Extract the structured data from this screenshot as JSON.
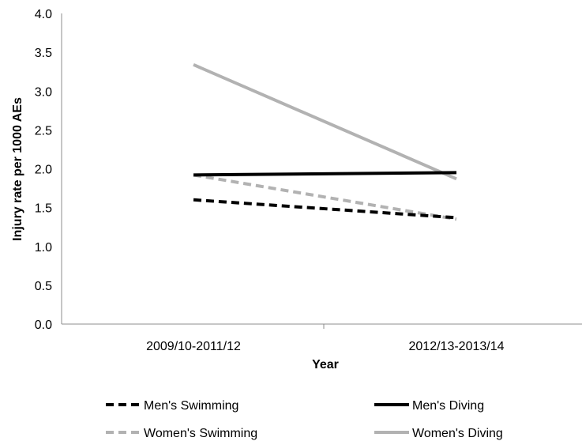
{
  "chart_data": {
    "type": "line",
    "title": "",
    "xlabel": "Year",
    "ylabel": "Injury rate per 1000 AEs",
    "categories": [
      "2009/10-2011/12",
      "2012/13-2013/14"
    ],
    "ylim": [
      0,
      4
    ],
    "yticks": [
      "0.0",
      "0.5",
      "1.0",
      "1.5",
      "2.0",
      "2.5",
      "3.0",
      "3.5",
      "4.0"
    ],
    "grid": false,
    "legend_position": "bottom",
    "series": [
      {
        "name": "Men's Swimming",
        "values": [
          1.6,
          1.37
        ],
        "color": "#000000",
        "dashed": true
      },
      {
        "name": "Men's Diving",
        "values": [
          1.92,
          1.95
        ],
        "color": "#000000",
        "dashed": false
      },
      {
        "name": "Women's Swimming",
        "values": [
          1.92,
          1.35
        ],
        "color": "#b2b2b2",
        "dashed": true
      },
      {
        "name": "Women's Diving",
        "values": [
          3.34,
          1.87
        ],
        "color": "#b2b2b2",
        "dashed": false
      }
    ]
  }
}
